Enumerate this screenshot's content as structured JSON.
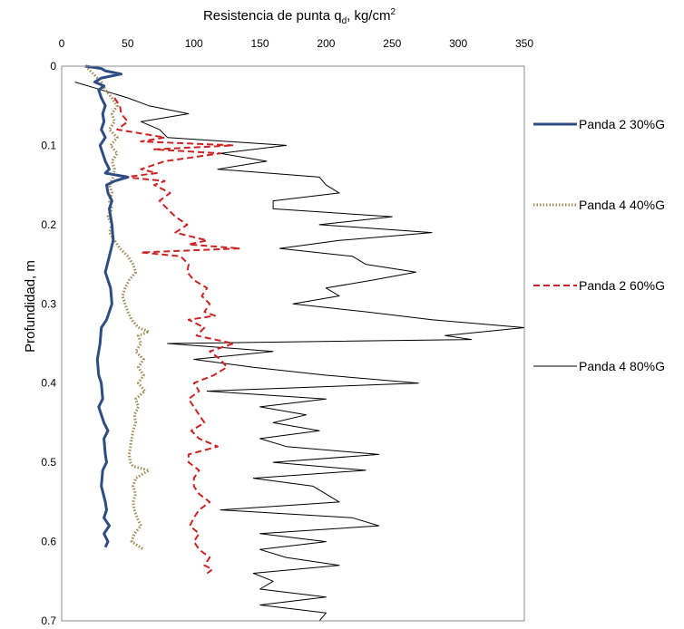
{
  "chart_data": {
    "type": "line",
    "title": "",
    "xlabel_main": "Resistencia de punta q",
    "xlabel_sub": "d",
    "xlabel_rest": ", kg/cm",
    "xlabel_sup": "2",
    "ylabel": "Profundidad, m",
    "xlim": [
      0,
      350
    ],
    "ylim": [
      0,
      0.7
    ],
    "y_inverted": true,
    "x_axis_position": "top",
    "x_ticks": [
      "0",
      "50",
      "100",
      "150",
      "200",
      "250",
      "300",
      "350"
    ],
    "y_ticks": [
      "0",
      "0.1",
      "0.2",
      "0.3",
      "0.4",
      "0.5",
      "0.6",
      "0.7"
    ],
    "grid": false,
    "legend_position": "right",
    "series": [
      {
        "name": "Panda 2 30%G",
        "color": "#2e4d82",
        "style": "solid-thick",
        "points": [
          [
            18,
            0.0
          ],
          [
            30,
            0.003
          ],
          [
            33,
            0.006
          ],
          [
            45,
            0.01
          ],
          [
            30,
            0.015
          ],
          [
            25,
            0.02
          ],
          [
            32,
            0.025
          ],
          [
            28,
            0.03
          ],
          [
            30,
            0.04
          ],
          [
            33,
            0.05
          ],
          [
            31,
            0.06
          ],
          [
            32,
            0.07
          ],
          [
            30,
            0.08
          ],
          [
            33,
            0.09
          ],
          [
            29,
            0.1
          ],
          [
            31,
            0.11
          ],
          [
            33,
            0.12
          ],
          [
            36,
            0.13
          ],
          [
            33,
            0.135
          ],
          [
            50,
            0.14
          ],
          [
            40,
            0.145
          ],
          [
            34,
            0.15
          ],
          [
            35,
            0.16
          ],
          [
            38,
            0.17
          ],
          [
            36,
            0.18
          ],
          [
            38,
            0.2
          ],
          [
            39,
            0.22
          ],
          [
            36,
            0.24
          ],
          [
            33,
            0.26
          ],
          [
            37,
            0.28
          ],
          [
            38,
            0.3
          ],
          [
            36,
            0.31
          ],
          [
            34,
            0.32
          ],
          [
            30,
            0.33
          ],
          [
            29,
            0.35
          ],
          [
            27,
            0.37
          ],
          [
            28,
            0.39
          ],
          [
            30,
            0.4
          ],
          [
            31,
            0.42
          ],
          [
            28,
            0.43
          ],
          [
            30,
            0.44
          ],
          [
            32,
            0.45
          ],
          [
            35,
            0.46
          ],
          [
            32,
            0.47
          ],
          [
            33,
            0.49
          ],
          [
            34,
            0.5
          ],
          [
            31,
            0.51
          ],
          [
            30,
            0.53
          ],
          [
            33,
            0.55
          ],
          [
            34,
            0.56
          ],
          [
            32,
            0.57
          ],
          [
            36,
            0.58
          ],
          [
            32,
            0.59
          ],
          [
            35,
            0.6
          ],
          [
            33,
            0.607
          ]
        ]
      },
      {
        "name": "Panda 4 40%G",
        "color": "#a08c55",
        "style": "dotted",
        "points": [
          [
            18,
            0.0
          ],
          [
            24,
            0.01
          ],
          [
            30,
            0.02
          ],
          [
            33,
            0.03
          ],
          [
            38,
            0.04
          ],
          [
            42,
            0.05
          ],
          [
            38,
            0.06
          ],
          [
            40,
            0.07
          ],
          [
            36,
            0.08
          ],
          [
            42,
            0.09
          ],
          [
            37,
            0.1
          ],
          [
            42,
            0.11
          ],
          [
            38,
            0.12
          ],
          [
            40,
            0.13
          ],
          [
            39,
            0.14
          ],
          [
            36,
            0.15
          ],
          [
            38,
            0.16
          ],
          [
            36,
            0.17
          ],
          [
            38,
            0.18
          ],
          [
            35,
            0.19
          ],
          [
            38,
            0.2
          ],
          [
            36,
            0.21
          ],
          [
            40,
            0.22
          ],
          [
            44,
            0.23
          ],
          [
            50,
            0.24
          ],
          [
            54,
            0.25
          ],
          [
            56,
            0.26
          ],
          [
            51,
            0.27
          ],
          [
            48,
            0.28
          ],
          [
            46,
            0.29
          ],
          [
            48,
            0.3
          ],
          [
            50,
            0.31
          ],
          [
            53,
            0.32
          ],
          [
            58,
            0.33
          ],
          [
            66,
            0.335
          ],
          [
            58,
            0.34
          ],
          [
            60,
            0.35
          ],
          [
            56,
            0.36
          ],
          [
            62,
            0.37
          ],
          [
            58,
            0.38
          ],
          [
            62,
            0.39
          ],
          [
            58,
            0.4
          ],
          [
            63,
            0.41
          ],
          [
            56,
            0.42
          ],
          [
            58,
            0.43
          ],
          [
            55,
            0.44
          ],
          [
            56,
            0.45
          ],
          [
            54,
            0.46
          ],
          [
            53,
            0.47
          ],
          [
            52,
            0.48
          ],
          [
            51,
            0.49
          ],
          [
            52,
            0.5
          ],
          [
            54,
            0.505
          ],
          [
            66,
            0.51
          ],
          [
            56,
            0.52
          ],
          [
            54,
            0.53
          ],
          [
            56,
            0.54
          ],
          [
            54,
            0.55
          ],
          [
            55,
            0.56
          ],
          [
            57,
            0.57
          ],
          [
            60,
            0.58
          ],
          [
            55,
            0.59
          ],
          [
            53,
            0.6
          ],
          [
            62,
            0.61
          ]
        ]
      },
      {
        "name": "Panda 2 60%G",
        "color": "#cc2222",
        "style": "dashed",
        "points": [
          [
            40,
            0.04
          ],
          [
            44,
            0.05
          ],
          [
            45,
            0.06
          ],
          [
            50,
            0.07
          ],
          [
            42,
            0.08
          ],
          [
            78,
            0.09
          ],
          [
            60,
            0.095
          ],
          [
            130,
            0.1
          ],
          [
            70,
            0.105
          ],
          [
            120,
            0.11
          ],
          [
            78,
            0.12
          ],
          [
            60,
            0.13
          ],
          [
            72,
            0.135
          ],
          [
            48,
            0.14
          ],
          [
            78,
            0.145
          ],
          [
            70,
            0.15
          ],
          [
            82,
            0.16
          ],
          [
            74,
            0.17
          ],
          [
            80,
            0.18
          ],
          [
            86,
            0.19
          ],
          [
            95,
            0.2
          ],
          [
            86,
            0.21
          ],
          [
            110,
            0.22
          ],
          [
            96,
            0.225
          ],
          [
            135,
            0.23
          ],
          [
            60,
            0.235
          ],
          [
            90,
            0.24
          ],
          [
            96,
            0.25
          ],
          [
            95,
            0.26
          ],
          [
            100,
            0.27
          ],
          [
            110,
            0.28
          ],
          [
            106,
            0.29
          ],
          [
            112,
            0.3
          ],
          [
            108,
            0.31
          ],
          [
            116,
            0.315
          ],
          [
            96,
            0.32
          ],
          [
            108,
            0.33
          ],
          [
            102,
            0.34
          ],
          [
            130,
            0.35
          ],
          [
            112,
            0.36
          ],
          [
            120,
            0.37
          ],
          [
            125,
            0.38
          ],
          [
            115,
            0.39
          ],
          [
            100,
            0.4
          ],
          [
            104,
            0.41
          ],
          [
            96,
            0.42
          ],
          [
            100,
            0.43
          ],
          [
            104,
            0.44
          ],
          [
            108,
            0.45
          ],
          [
            98,
            0.46
          ],
          [
            104,
            0.47
          ],
          [
            118,
            0.48
          ],
          [
            96,
            0.49
          ],
          [
            96,
            0.5
          ],
          [
            104,
            0.51
          ],
          [
            100,
            0.52
          ],
          [
            100,
            0.53
          ],
          [
            104,
            0.54
          ],
          [
            112,
            0.55
          ],
          [
            104,
            0.56
          ],
          [
            100,
            0.57
          ],
          [
            97,
            0.58
          ],
          [
            104,
            0.59
          ],
          [
            100,
            0.6
          ],
          [
            104,
            0.61
          ],
          [
            112,
            0.62
          ],
          [
            108,
            0.63
          ],
          [
            114,
            0.635
          ],
          [
            110,
            0.64
          ]
        ]
      },
      {
        "name": "Panda 4 80%G",
        "color": "#000000",
        "style": "solid-thin",
        "points": [
          [
            10,
            0.02
          ],
          [
            30,
            0.03
          ],
          [
            50,
            0.04
          ],
          [
            66,
            0.05
          ],
          [
            96,
            0.06
          ],
          [
            60,
            0.07
          ],
          [
            74,
            0.08
          ],
          [
            80,
            0.09
          ],
          [
            170,
            0.1
          ],
          [
            120,
            0.11
          ],
          [
            155,
            0.12
          ],
          [
            118,
            0.13
          ],
          [
            195,
            0.14
          ],
          [
            200,
            0.15
          ],
          [
            210,
            0.16
          ],
          [
            160,
            0.17
          ],
          [
            160,
            0.18
          ],
          [
            250,
            0.19
          ],
          [
            195,
            0.2
          ],
          [
            280,
            0.21
          ],
          [
            210,
            0.22
          ],
          [
            165,
            0.23
          ],
          [
            220,
            0.24
          ],
          [
            230,
            0.25
          ],
          [
            268,
            0.26
          ],
          [
            235,
            0.27
          ],
          [
            200,
            0.28
          ],
          [
            210,
            0.29
          ],
          [
            175,
            0.3
          ],
          [
            230,
            0.31
          ],
          [
            280,
            0.32
          ],
          [
            350,
            0.33
          ],
          [
            290,
            0.34
          ],
          [
            310,
            0.345
          ],
          [
            80,
            0.35
          ],
          [
            160,
            0.36
          ],
          [
            100,
            0.37
          ],
          [
            145,
            0.38
          ],
          [
            200,
            0.39
          ],
          [
            270,
            0.4
          ],
          [
            110,
            0.41
          ],
          [
            200,
            0.42
          ],
          [
            150,
            0.43
          ],
          [
            185,
            0.44
          ],
          [
            160,
            0.45
          ],
          [
            195,
            0.46
          ],
          [
            150,
            0.47
          ],
          [
            170,
            0.48
          ],
          [
            240,
            0.49
          ],
          [
            160,
            0.5
          ],
          [
            230,
            0.51
          ],
          [
            145,
            0.52
          ],
          [
            190,
            0.53
          ],
          [
            200,
            0.54
          ],
          [
            210,
            0.55
          ],
          [
            120,
            0.56
          ],
          [
            220,
            0.57
          ],
          [
            240,
            0.58
          ],
          [
            150,
            0.59
          ],
          [
            200,
            0.6
          ],
          [
            150,
            0.61
          ],
          [
            170,
            0.62
          ],
          [
            210,
            0.63
          ],
          [
            145,
            0.64
          ],
          [
            160,
            0.65
          ],
          [
            150,
            0.66
          ],
          [
            200,
            0.67
          ],
          [
            150,
            0.68
          ],
          [
            200,
            0.69
          ],
          [
            195,
            0.7
          ]
        ]
      }
    ]
  }
}
